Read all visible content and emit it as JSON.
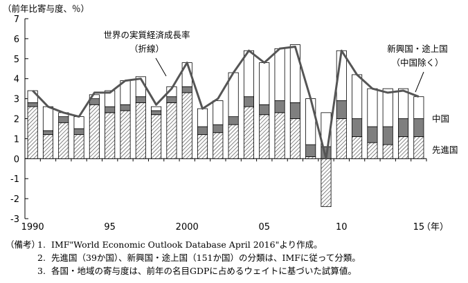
{
  "chart_data": {
    "type": "bar",
    "stacked": true,
    "ylabel": "（前年比寄与度、％）",
    "xlabel": "（年）",
    "ylim": [
      -3,
      7
    ],
    "yticks": [
      -3,
      -2,
      -1,
      0,
      1,
      2,
      3,
      4,
      5,
      6,
      7
    ],
    "x": [
      1990,
      1991,
      1992,
      1993,
      1994,
      1995,
      1996,
      1997,
      1998,
      1999,
      2000,
      2001,
      2002,
      2003,
      2004,
      2005,
      2006,
      2007,
      2008,
      2009,
      2010,
      2011,
      2012,
      2013,
      2014,
      2015
    ],
    "xtick_labels": [
      {
        "x": 1990,
        "label": "1990"
      },
      {
        "x": 1995,
        "label": "95"
      },
      {
        "x": 2000,
        "label": "2000"
      },
      {
        "x": 2005,
        "label": "05"
      },
      {
        "x": 2010,
        "label": "10"
      },
      {
        "x": 2015,
        "label": "15"
      }
    ],
    "series": [
      {
        "name": "先進国",
        "pattern": "hatched",
        "values": [
          2.6,
          1.2,
          1.8,
          1.2,
          2.7,
          2.3,
          2.4,
          2.8,
          2.2,
          2.8,
          3.3,
          1.2,
          1.3,
          1.7,
          2.6,
          2.2,
          2.3,
          2.0,
          0.1,
          -2.4,
          2.0,
          1.1,
          0.8,
          0.7,
          1.1,
          1.1
        ]
      },
      {
        "name": "中国",
        "color": "#7f7f7f",
        "values": [
          0.2,
          0.2,
          0.3,
          0.3,
          0.3,
          0.3,
          0.3,
          0.3,
          0.2,
          0.3,
          0.3,
          0.4,
          0.4,
          0.4,
          0.5,
          0.5,
          0.6,
          0.8,
          0.6,
          0.6,
          0.9,
          0.9,
          0.8,
          0.9,
          0.9,
          0.9
        ]
      },
      {
        "name": "新興国・途上国（中国除く）",
        "color": "#ffffff",
        "values": [
          0.6,
          1.2,
          0.2,
          0.6,
          0.2,
          0.8,
          1.2,
          1.0,
          0.2,
          0.5,
          1.2,
          0.9,
          1.2,
          2.2,
          2.3,
          2.1,
          2.6,
          2.9,
          2.3,
          1.7,
          2.5,
          2.2,
          1.9,
          1.9,
          1.5,
          1.1
        ]
      },
      {
        "name": "世界の実質経済成長率（折線）",
        "type": "line",
        "color": "#555555",
        "values": [
          3.4,
          2.6,
          2.3,
          2.1,
          3.3,
          3.3,
          3.9,
          4.0,
          2.7,
          3.5,
          4.8,
          2.5,
          3.0,
          4.3,
          5.4,
          4.8,
          5.5,
          5.6,
          3.0,
          0.0,
          5.4,
          4.2,
          3.5,
          3.3,
          3.4,
          3.1
        ]
      }
    ],
    "annotations": {
      "world_l1": "世界の実質経済成長率",
      "world_l2": "（折線）",
      "emerging_l1": "新興国・途上国",
      "emerging_l2": "（中国除く）",
      "china": "中国",
      "advanced": "先進国"
    }
  },
  "notes": {
    "label": "（備考）",
    "items": [
      {
        "num": "1.",
        "text": "IMF\"World Economic Outlook Database April 2016\"より作成。"
      },
      {
        "num": "2.",
        "text": "先進国（39か国）、新興国・途上国（151か国）の分類は、IMFに従って分類。"
      },
      {
        "num": "3.",
        "text": "各国・地域の寄与度は、前年の名目GDPに占めるウェイトに基づいた試算値。"
      }
    ]
  }
}
